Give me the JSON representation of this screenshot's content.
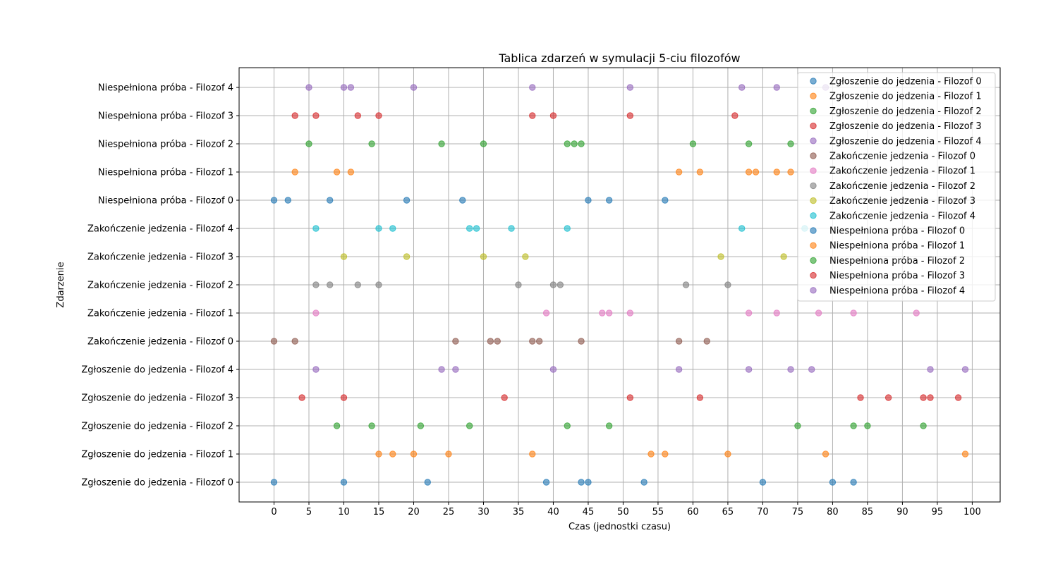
{
  "chart_data": {
    "type": "scatter",
    "title": "Tablica zdarzeń w symulacji 5-ciu filozofów",
    "xlabel": "Czas (jednostki czasu)",
    "ylabel": "Zdarzenie",
    "xlim": [
      -5,
      104
    ],
    "xticks": [
      0,
      5,
      10,
      15,
      20,
      25,
      30,
      35,
      40,
      45,
      50,
      55,
      60,
      65,
      70,
      75,
      80,
      85,
      90,
      95,
      100
    ],
    "grid": true,
    "legend_position": "top-right",
    "categories": [
      "Zgłoszenie do jedzenia - Filozof 0",
      "Zgłoszenie do jedzenia - Filozof 1",
      "Zgłoszenie do jedzenia - Filozof 2",
      "Zgłoszenie do jedzenia - Filozof 3",
      "Zgłoszenie do jedzenia - Filozof 4",
      "Zakończenie jedzenia - Filozof 0",
      "Zakończenie jedzenia - Filozof 1",
      "Zakończenie jedzenia - Filozof 2",
      "Zakończenie jedzenia - Filozof 3",
      "Zakończenie jedzenia - Filozof 4",
      "Niespełniona próba - Filozof 0",
      "Niespełniona próba - Filozof 1",
      "Niespełniona próba - Filozof 2",
      "Niespełniona próba - Filozof 3",
      "Niespełniona próba - Filozof 4"
    ],
    "series": [
      {
        "name": "Zgłoszenie do jedzenia - Filozof 0",
        "color": "#1f77b4",
        "x": [
          0,
          10,
          22,
          39,
          44,
          45,
          53,
          70,
          80,
          83
        ]
      },
      {
        "name": "Zgłoszenie do jedzenia - Filozof 1",
        "color": "#ff7f0e",
        "x": [
          15,
          17,
          20,
          25,
          37,
          54,
          56,
          65,
          79,
          99
        ]
      },
      {
        "name": "Zgłoszenie do jedzenia - Filozof 2",
        "color": "#2ca02c",
        "x": [
          9,
          14,
          21,
          28,
          42,
          48,
          75,
          83,
          85,
          93
        ]
      },
      {
        "name": "Zgłoszenie do jedzenia - Filozof 3",
        "color": "#d62728",
        "x": [
          4,
          10,
          33,
          51,
          61,
          84,
          88,
          93,
          94,
          98
        ]
      },
      {
        "name": "Zgłoszenie do jedzenia - Filozof 4",
        "color": "#9467bd",
        "x": [
          6,
          24,
          26,
          40,
          58,
          68,
          74,
          77,
          94,
          99
        ]
      },
      {
        "name": "Zakończenie jedzenia - Filozof 0",
        "color": "#8c564b",
        "x": [
          0,
          3,
          26,
          31,
          32,
          37,
          38,
          44,
          58,
          62
        ]
      },
      {
        "name": "Zakończenie jedzenia - Filozof 1",
        "color": "#e377c2",
        "x": [
          6,
          39,
          47,
          48,
          51,
          68,
          72,
          78,
          83,
          92
        ]
      },
      {
        "name": "Zakończenie jedzenia - Filozof 2",
        "color": "#7f7f7f",
        "x": [
          6,
          8,
          12,
          15,
          35,
          40,
          41,
          59,
          65
        ]
      },
      {
        "name": "Zakończenie jedzenia - Filozof 3",
        "color": "#bcbd22",
        "x": [
          10,
          19,
          30,
          36,
          64,
          73
        ]
      },
      {
        "name": "Zakończenie jedzenia - Filozof 4",
        "color": "#17becf",
        "x": [
          6,
          15,
          17,
          28,
          29,
          34,
          42,
          67,
          76
        ]
      },
      {
        "name": "Niespełniona próba - Filozof 0",
        "color": "#1f77b4",
        "x": [
          0,
          2,
          8,
          19,
          27,
          45,
          48,
          56
        ]
      },
      {
        "name": "Niespełniona próba - Filozof 1",
        "color": "#ff7f0e",
        "x": [
          3,
          9,
          11,
          58,
          61,
          68,
          69,
          72,
          74
        ]
      },
      {
        "name": "Niespełniona próba - Filozof 2",
        "color": "#2ca02c",
        "x": [
          5,
          14,
          24,
          30,
          42,
          43,
          44,
          60,
          68,
          74
        ]
      },
      {
        "name": "Niespełniona próba - Filozof 3",
        "color": "#d62728",
        "x": [
          3,
          6,
          12,
          15,
          37,
          40,
          51,
          66
        ]
      },
      {
        "name": "Niespełniona próba - Filozof 4",
        "color": "#9467bd",
        "x": [
          5,
          10,
          11,
          20,
          37,
          51,
          67,
          72,
          79
        ]
      }
    ]
  }
}
